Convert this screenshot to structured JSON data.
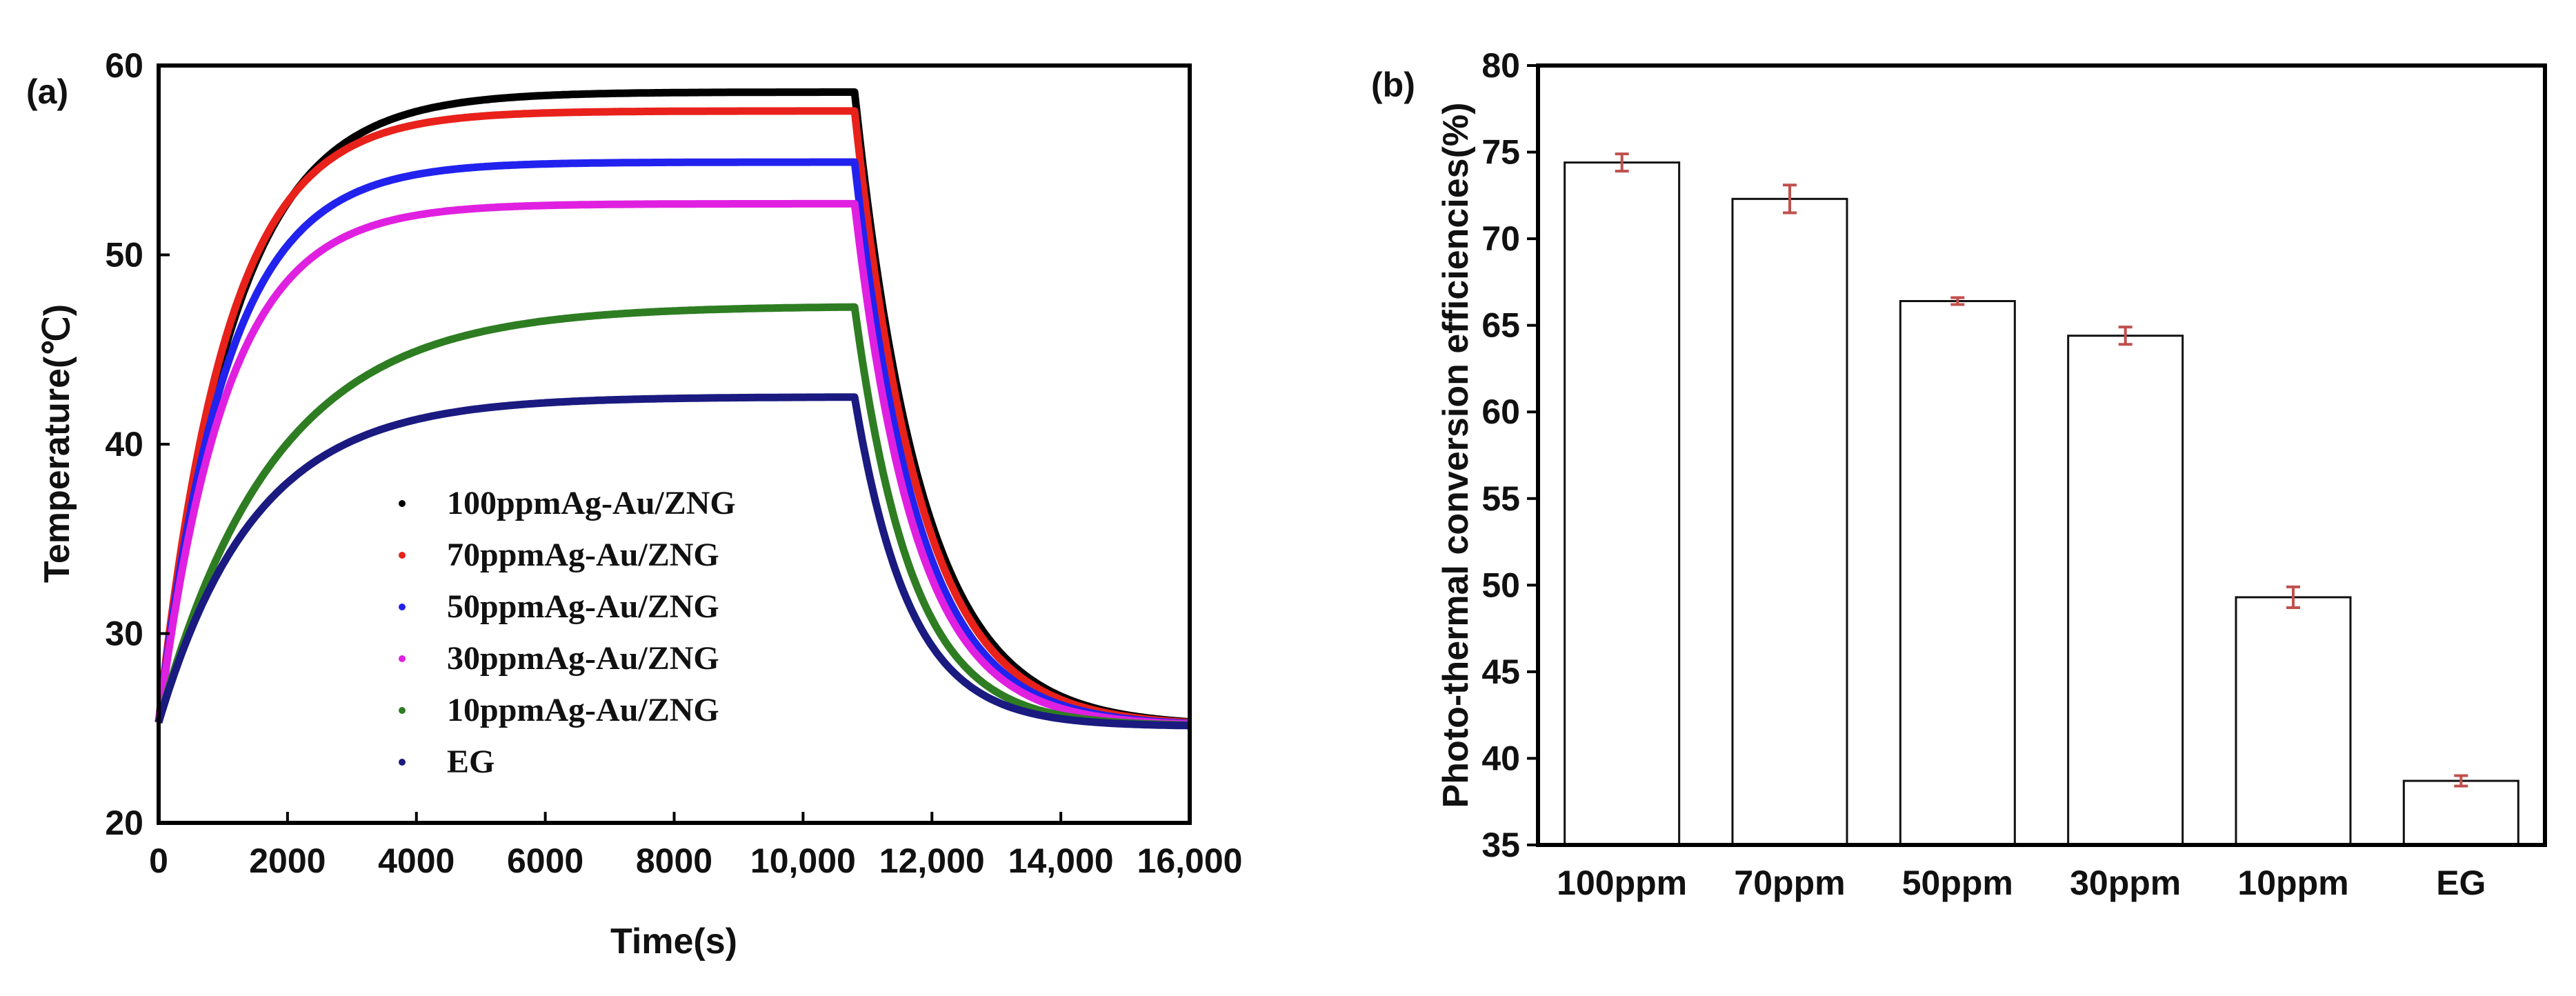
{
  "chart_data": [
    {
      "panel_label": "(a)",
      "type": "line",
      "xlabel": "Time(s)",
      "ylabel": "Temperature(℃)",
      "xlim": [
        0,
        16000
      ],
      "ylim": [
        20,
        60
      ],
      "x_ticks": [
        0,
        2000,
        4000,
        6000,
        8000,
        10000,
        12000,
        14000,
        16000
      ],
      "x_tick_labels": [
        "0",
        "2000",
        "4000",
        "6000",
        "8000",
        "10,000",
        "12,000",
        "14,000",
        "16,000"
      ],
      "y_ticks": [
        20,
        30,
        40,
        50,
        60
      ],
      "y_tick_labels": [
        "20",
        "30",
        "40",
        "50",
        "60"
      ],
      "legend_position": "bottom-center",
      "model": {
        "start_temp": 25.3,
        "heating_end": 10800,
        "ambient": 25.1
      },
      "series": [
        {
          "name": "100ppmAg-Au/ZNG",
          "color": "#000000",
          "plateau": 58.6,
          "rise_tau": 1150,
          "decay_tau": 1050
        },
        {
          "name": "70ppmAg-Au/ZNG",
          "color": "#e8211b",
          "plateau": 57.6,
          "rise_tau": 1050,
          "decay_tau": 1020
        },
        {
          "name": "50ppmAg-Au/ZNG",
          "color": "#2222ee",
          "plateau": 54.9,
          "rise_tau": 1050,
          "decay_tau": 980
        },
        {
          "name": "30ppmAg-Au/ZNG",
          "color": "#e020e0",
          "plateau": 52.7,
          "rise_tau": 1050,
          "decay_tau": 950
        },
        {
          "name": "10ppmAg-Au/ZNG",
          "color": "#2e7d22",
          "plateau": 47.3,
          "rise_tau": 1800,
          "decay_tau": 880
        },
        {
          "name": "EG",
          "color": "#1a1a80",
          "plateau": 42.5,
          "rise_tau": 1500,
          "decay_tau": 850
        }
      ]
    },
    {
      "panel_label": "(b)",
      "type": "bar",
      "xlabel": "",
      "ylabel": "Photo-thermal conversion efficiencies(%)",
      "ylim": [
        35,
        80
      ],
      "y_ticks": [
        35,
        40,
        45,
        50,
        55,
        60,
        65,
        70,
        75,
        80
      ],
      "y_tick_labels": [
        "35",
        "40",
        "45",
        "50",
        "55",
        "60",
        "65",
        "70",
        "75",
        "80"
      ],
      "categories": [
        "100ppm",
        "70ppm",
        "50ppm",
        "30ppm",
        "10ppm",
        "EG"
      ],
      "values": [
        74.4,
        72.3,
        66.4,
        64.4,
        49.3,
        38.7
      ],
      "errors": [
        0.5,
        0.8,
        0.2,
        0.5,
        0.6,
        0.3
      ],
      "bar_color": "#ffffff",
      "error_color": "#c0504d"
    }
  ]
}
